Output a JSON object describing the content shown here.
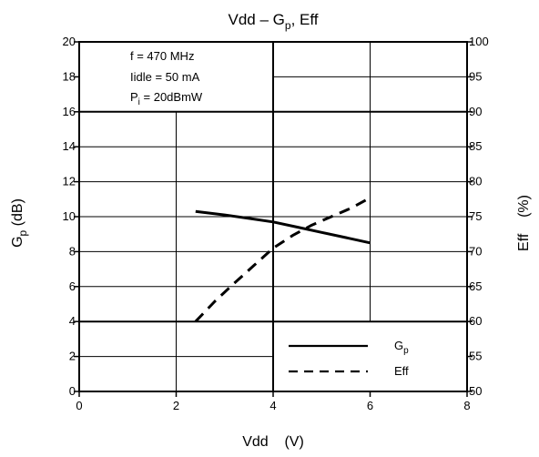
{
  "chart_data": {
    "type": "line",
    "title": "Vdd – Gp, Eff",
    "title_parts": {
      "pre": "Vdd – G",
      "sub": "p",
      "post": ", Eff"
    },
    "xlabel": "Vdd    (V)",
    "ylabel": "Gp (dB)",
    "ylabel_parts": {
      "main": "G",
      "sub": "p",
      "post": " (dB)"
    },
    "y2label": "Eff    (%)",
    "xlim": [
      0,
      8
    ],
    "ylim": [
      0,
      20
    ],
    "y2lim": [
      50,
      100
    ],
    "xticks": [
      "0",
      "2",
      "4",
      "6",
      "8"
    ],
    "yticks": [
      "0",
      "2",
      "4",
      "6",
      "8",
      "10",
      "12",
      "14",
      "16",
      "18",
      "20"
    ],
    "y2ticks": [
      "50",
      "55",
      "60",
      "65",
      "70",
      "75",
      "80",
      "85",
      "90",
      "95",
      "100"
    ],
    "grid": true,
    "annotations": [
      {
        "text": "f = 470 MHz"
      },
      {
        "text": "Iidle = 50 mA"
      },
      {
        "main": "P",
        "sub": "i",
        "post": " = 20dBmW"
      }
    ],
    "legend_position": "bottom-right",
    "series": [
      {
        "name": "Gp",
        "name_parts": {
          "main": "G",
          "sub": "p"
        },
        "axis": "left",
        "line_style": "solid",
        "x": [
          2.4,
          3.0,
          3.5,
          4.0,
          4.5,
          5.0,
          5.5,
          6.0
        ],
        "y": [
          10.3,
          10.1,
          9.9,
          9.7,
          9.4,
          9.1,
          8.8,
          8.5
        ]
      },
      {
        "name": "Eff",
        "axis": "right",
        "line_style": "dashed",
        "x": [
          2.4,
          2.8,
          3.2,
          3.6,
          4.0,
          4.4,
          4.8,
          5.2,
          5.6,
          6.0
        ],
        "y": [
          60.0,
          62.9,
          65.5,
          68.0,
          70.5,
          72.3,
          73.8,
          75.0,
          76.2,
          77.7
        ]
      }
    ]
  }
}
